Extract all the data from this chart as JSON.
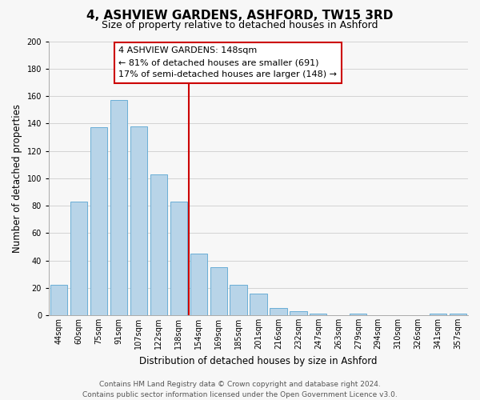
{
  "title": "4, ASHVIEW GARDENS, ASHFORD, TW15 3RD",
  "subtitle": "Size of property relative to detached houses in Ashford",
  "xlabel": "Distribution of detached houses by size in Ashford",
  "ylabel": "Number of detached properties",
  "bar_labels": [
    "44sqm",
    "60sqm",
    "75sqm",
    "91sqm",
    "107sqm",
    "122sqm",
    "138sqm",
    "154sqm",
    "169sqm",
    "185sqm",
    "201sqm",
    "216sqm",
    "232sqm",
    "247sqm",
    "263sqm",
    "279sqm",
    "294sqm",
    "310sqm",
    "326sqm",
    "341sqm",
    "357sqm"
  ],
  "bar_values": [
    22,
    83,
    137,
    157,
    138,
    103,
    83,
    45,
    35,
    22,
    16,
    5,
    3,
    1,
    0,
    1,
    0,
    0,
    0,
    1,
    1
  ],
  "bar_color": "#b8d4e8",
  "bar_edge_color": "#6aaed6",
  "reference_line_x": 6.5,
  "reference_line_color": "#cc0000",
  "annotation_line1": "4 ASHVIEW GARDENS: 148sqm",
  "annotation_line2": "← 81% of detached houses are smaller (691)",
  "annotation_line3": "17% of semi-detached houses are larger (148) →",
  "annotation_box_color": "#ffffff",
  "annotation_box_edge_color": "#cc0000",
  "ylim": [
    0,
    200
  ],
  "yticks": [
    0,
    20,
    40,
    60,
    80,
    100,
    120,
    140,
    160,
    180,
    200
  ],
  "grid_color": "#cccccc",
  "background_color": "#f7f7f7",
  "footer_line1": "Contains HM Land Registry data © Crown copyright and database right 2024.",
  "footer_line2": "Contains public sector information licensed under the Open Government Licence v3.0.",
  "title_fontsize": 11,
  "subtitle_fontsize": 9,
  "axis_label_fontsize": 8.5,
  "tick_fontsize": 7,
  "annotation_fontsize": 8,
  "footer_fontsize": 6.5
}
